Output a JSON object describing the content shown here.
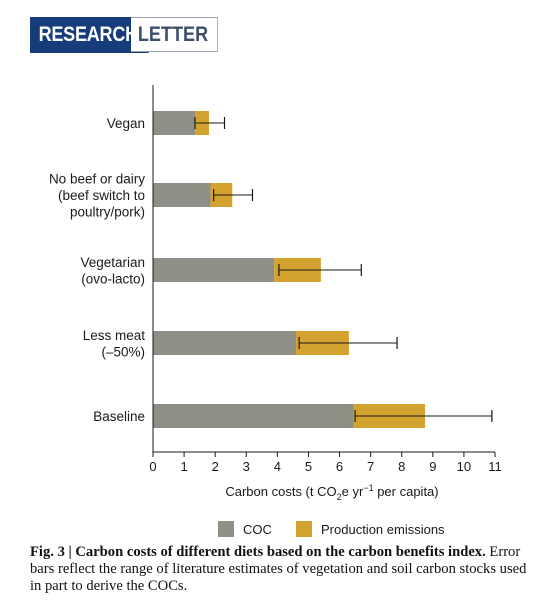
{
  "header": {
    "badge_primary": "RESEARCH",
    "badge_secondary": "LETTER"
  },
  "chart_data": {
    "type": "bar",
    "orientation": "horizontal",
    "stacked": true,
    "categories": [
      [
        "Vegan"
      ],
      [
        "No beef or dairy",
        "(beef switch to",
        "poultry/pork)"
      ],
      [
        "Vegetarian",
        "(ovo-lacto)"
      ],
      [
        "Less meat",
        "(–50%)"
      ],
      [
        "Baseline"
      ]
    ],
    "series": [
      {
        "name": "COC",
        "color": "#8f8f88",
        "values": [
          1.35,
          1.85,
          3.9,
          4.6,
          6.45
        ]
      },
      {
        "name": "Production emissions",
        "color": "#d3a22f",
        "values": [
          0.45,
          0.7,
          1.5,
          1.7,
          2.3
        ]
      }
    ],
    "error_bars": [
      {
        "center": 1.35,
        "low": 1.35,
        "high": 2.3
      },
      {
        "center": 1.95,
        "low": 1.95,
        "high": 3.2
      },
      {
        "center": 4.05,
        "low": 4.05,
        "high": 6.7
      },
      {
        "center": 4.7,
        "low": 4.7,
        "high": 7.85
      },
      {
        "center": 6.5,
        "low": 6.5,
        "high": 10.9
      }
    ],
    "xlim": [
      0,
      11
    ],
    "xticks": [
      "0",
      "1",
      "2",
      "3",
      "4",
      "5",
      "6",
      "7",
      "8",
      "9",
      "10",
      "11"
    ],
    "xlabel_parts": {
      "pre": "Carbon costs (t CO",
      "sub": "2",
      "mid": "e yr",
      "sup": "−1",
      "post": " per capita)"
    },
    "legend_position": "bottom",
    "grid": false
  },
  "caption": {
    "bold": "Fig. 3 | Carbon costs of different diets based on the carbon benefits index.",
    "text": " Error bars reflect the range of literature estimates of vegetation and soil carbon stocks used in part to derive the COCs."
  }
}
